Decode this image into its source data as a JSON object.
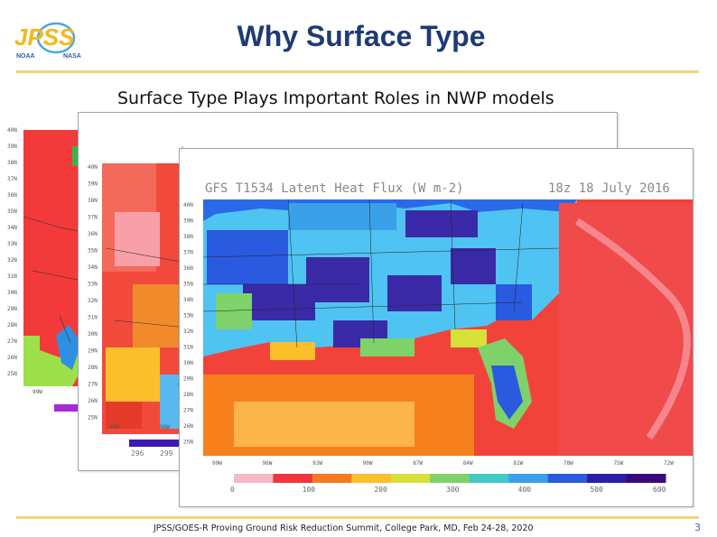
{
  "header": {
    "logo_text": "JPSS",
    "logo_sub_left": "NOAA",
    "logo_sub_right": "NASA",
    "title": "Why Surface Type"
  },
  "subtitle": "Surface Type Plays Important Roles in NWP models",
  "front_map": {
    "title": "GFS T1534 Latent Heat Flux (W m-2)",
    "time": "18z  18 July 2016",
    "lat_labels": [
      "40N",
      "39N",
      "38N",
      "37N",
      "36N",
      "35N",
      "34N",
      "33N",
      "32N",
      "31N",
      "30N",
      "29N",
      "28N",
      "27N",
      "26N",
      "25N"
    ],
    "lon_labels": [
      "99W",
      "96W",
      "93W",
      "90W",
      "87W",
      "84W",
      "81W",
      "78W",
      "75W",
      "72W"
    ],
    "colorbar_ticks": [
      "0",
      "100",
      "200",
      "300",
      "400",
      "500",
      "600"
    ],
    "colorbar_colors": [
      "#f6b9c8",
      "#f0363b",
      "#f77a1f",
      "#fbbf2c",
      "#d8e03a",
      "#7fd26a",
      "#43c8c8",
      "#3aa0e8",
      "#2a5ae0",
      "#2a1fa8",
      "#3a0a7a"
    ]
  },
  "middle_map": {
    "lat_labels": [
      "40N",
      "39N",
      "38N",
      "37N",
      "36N",
      "35N",
      "34N",
      "33N",
      "32N",
      "31N",
      "30N",
      "29N",
      "28N",
      "27N",
      "26N",
      "25N"
    ],
    "lon_labels": [
      "99W",
      "96W"
    ],
    "bottom_labels": [
      "296",
      "299"
    ]
  },
  "back_map": {
    "lat_labels": [
      "40N",
      "39N",
      "38N",
      "37N",
      "36N",
      "35N",
      "34N",
      "33N",
      "32N",
      "31N",
      "30N",
      "29N",
      "28N",
      "27N",
      "26N",
      "25N"
    ],
    "lon_labels": [
      "99W"
    ]
  },
  "footer": {
    "text": "JPSS/GOES-R Proving Ground Risk Reduction Summit, College Park, MD, Feb 24-28, 2020",
    "page_number": "3"
  }
}
